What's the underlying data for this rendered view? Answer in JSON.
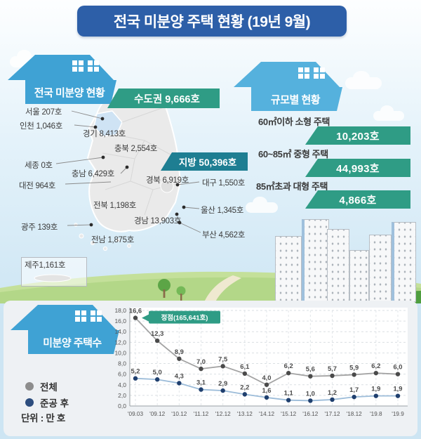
{
  "title": "전국 미분양 주택 현황 (19년 9월)",
  "national": {
    "header": "전국 미분양 현황",
    "capital_banner": "수도권 9,666호",
    "regional_banner": "지방 50,396호",
    "labels": [
      "서울  207호",
      "인천 1,046호",
      "경기 8,413호",
      "충북 2,554호",
      "세종 0호",
      "충남 6,429호",
      "대전 964호",
      "경북 6,919호",
      "대구 1,550호",
      "전북 1,198호",
      "울산 1,345호",
      "광주 139호",
      "경남 13,903호",
      "전남 1,875호",
      "부산 4,562호",
      "제주1,161호"
    ]
  },
  "by_size": {
    "header": "규모별 현황",
    "items": [
      {
        "label": "60㎡이하 소형 주택",
        "value": "10,203호"
      },
      {
        "label": "60~85㎡ 중형 주택",
        "value": "44,993호"
      },
      {
        "label": "85㎡초과 대형 주택",
        "value": "4,866호"
      }
    ]
  },
  "chart": {
    "header": "미분양 주택수",
    "legend": [
      {
        "label": "전체",
        "color": "#8d8d8d"
      },
      {
        "label": "준공 후",
        "color": "#2c4d7e"
      }
    ],
    "unit": "단위 : 만 호"
  },
  "chart_data": {
    "type": "line",
    "title": "미분양 주택수",
    "ylabel": "만 호",
    "categories": [
      "'09.03",
      "'09.12",
      "'10.12",
      "'11.12",
      "'12.12",
      "'13.12",
      "'14.12",
      "'15.12",
      "'16.12",
      "'17.12",
      "'18.12",
      "'19.8",
      "'19.9"
    ],
    "series": [
      {
        "name": "전체",
        "line_color": "#a3a3a3",
        "dot_color": "#4a4a4a",
        "values": [
          16.6,
          12.3,
          8.9,
          7.0,
          7.5,
          6.1,
          4.0,
          6.2,
          5.6,
          5.7,
          5.9,
          6.2,
          6.0
        ]
      },
      {
        "name": "준공 후",
        "line_color": "#9cbcd9",
        "dot_color": "#1f3f6e",
        "values": [
          5.2,
          5.0,
          4.3,
          3.1,
          2.9,
          2.2,
          1.6,
          1.1,
          1.0,
          1.2,
          1.7,
          1.9,
          1.9
        ]
      }
    ],
    "ylim": [
      0,
      18
    ],
    "ytick_step": 2,
    "decimal_separator": ",",
    "grid": true,
    "legend_position": "left",
    "annotation": {
      "text": "정점(165,641호)",
      "index": 0,
      "color": "#2f9c85"
    }
  },
  "colors": {
    "title_bg": "#2d5fa8",
    "house_blue": "#42a5d7",
    "teal_banner": "#2f9c85",
    "regional_banner": "#1e7e92",
    "capital_highlight": "#cfe3f4"
  }
}
